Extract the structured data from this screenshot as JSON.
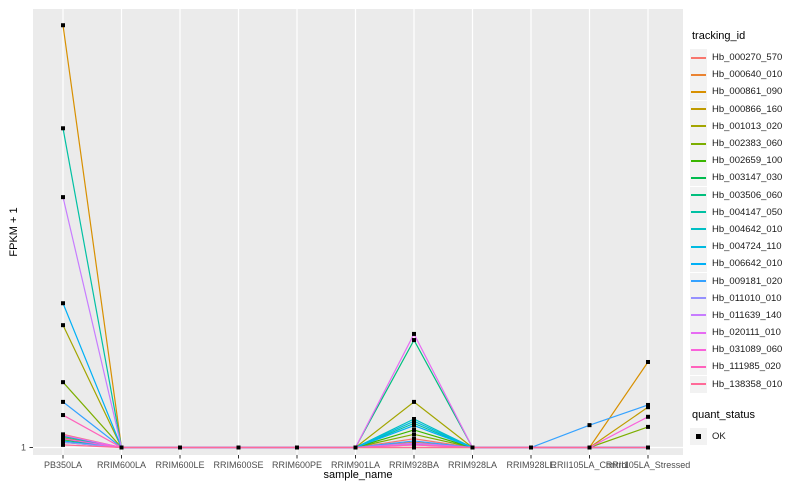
{
  "figure": {
    "background": "#FFFFFF",
    "panel_background": "#EBEBEB",
    "gridline_color": "#FFFFFF",
    "tick_color": "#333333",
    "tick_label_color": "#4D4D4D",
    "marker_color": "#000000"
  },
  "legend": {
    "color_legend_title": "tracking_id",
    "shape_legend_title": "quant_status",
    "shape_items": [
      {
        "label": "OK",
        "marker": "filled-square"
      }
    ]
  },
  "chart_data": {
    "type": "line",
    "title": "",
    "xlabel": "sample_name",
    "ylabel": "FPKM + 1",
    "x_type": "categorical",
    "y_ticks": [
      "1"
    ],
    "y_scale_note": "log-style axis; only the value 1 is labelled at the baseline. rel_heights are fractions of panel height above the FPKM+1 = 1 baseline (1.0 = panel top), measured from the image.",
    "grid": "white major vertical gridline per category, one horizontal gridline at y=1",
    "legend_position": "right",
    "point_marker": "small black square (quant_status OK)",
    "categories": [
      "PB350LA",
      "RRIM600LA",
      "RRIM600LE",
      "RRIM600SE",
      "RRIM600PE",
      "RRIM901LA",
      "RRIM928BA",
      "RRIM928LA",
      "RRIM928LE",
      "RRII105LA_Control",
      "RRII105LA_Stressed"
    ],
    "series": [
      {
        "name": "Hb_000270_570",
        "color": "#F8766D",
        "rel_heights": [
          0.03,
          0,
          0,
          0,
          0,
          0,
          0.02,
          0,
          0,
          0,
          0
        ]
      },
      {
        "name": "Hb_000640_010",
        "color": "#EA8331",
        "rel_heights": [
          0.026,
          0,
          0,
          0,
          0,
          0,
          0.012,
          0,
          0,
          0,
          0
        ]
      },
      {
        "name": "Hb_000861_090",
        "color": "#D89000",
        "rel_heights": [
          0.963,
          0,
          0,
          0,
          0,
          0,
          0.01,
          0,
          0,
          0,
          0.195
        ]
      },
      {
        "name": "Hb_000866_160",
        "color": "#C09B00",
        "rel_heights": [
          0.022,
          0,
          0,
          0,
          0,
          0,
          0,
          0,
          0,
          0,
          0.092
        ]
      },
      {
        "name": "Hb_001013_020",
        "color": "#A3A500",
        "rel_heights": [
          0.279,
          0,
          0,
          0,
          0,
          0,
          0.104,
          0,
          0,
          0,
          0
        ]
      },
      {
        "name": "Hb_002383_060",
        "color": "#7CAE00",
        "rel_heights": [
          0.149,
          0,
          0,
          0,
          0,
          0,
          0.03,
          0,
          0,
          0,
          0.047
        ]
      },
      {
        "name": "Hb_002659_100",
        "color": "#39B600",
        "rel_heights": [
          0.018,
          0,
          0,
          0,
          0,
          0,
          0.04,
          0,
          0,
          0,
          0
        ]
      },
      {
        "name": "Hb_003147_030",
        "color": "#00BB4E",
        "rel_heights": [
          0.012,
          0,
          0,
          0,
          0,
          0,
          0.008,
          0,
          0,
          0,
          0
        ]
      },
      {
        "name": "Hb_003506_060",
        "color": "#00BF7D",
        "rel_heights": [
          0.02,
          0,
          0,
          0,
          0,
          0,
          0.245,
          0,
          0,
          0,
          0
        ]
      },
      {
        "name": "Hb_004147_050",
        "color": "#00C1A3",
        "rel_heights": [
          0.728,
          0,
          0,
          0,
          0,
          0,
          0.055,
          0,
          0,
          0,
          0
        ]
      },
      {
        "name": "Hb_004642_010",
        "color": "#00BFC4",
        "rel_heights": [
          0.025,
          0,
          0,
          0,
          0,
          0,
          0.065,
          0,
          0,
          0,
          0
        ]
      },
      {
        "name": "Hb_004724_110",
        "color": "#00BAE0",
        "rel_heights": [
          0.015,
          0,
          0,
          0,
          0,
          0,
          0.06,
          0,
          0,
          0,
          0
        ]
      },
      {
        "name": "Hb_006642_010",
        "color": "#00B0F6",
        "rel_heights": [
          0.329,
          0,
          0,
          0,
          0,
          0,
          0.05,
          0,
          0,
          0,
          0
        ]
      },
      {
        "name": "Hb_009181_020",
        "color": "#35A2FF",
        "rel_heights": [
          0.104,
          0,
          0,
          0,
          0,
          0,
          0.015,
          0,
          0,
          0.051,
          0.097
        ]
      },
      {
        "name": "Hb_011010_010",
        "color": "#9590FF",
        "rel_heights": [
          0.012,
          0,
          0,
          0,
          0,
          0,
          0.008,
          0,
          0,
          0,
          0
        ]
      },
      {
        "name": "Hb_011639_140",
        "color": "#C77CFF",
        "rel_heights": [
          0.571,
          0,
          0,
          0,
          0,
          0,
          0.01,
          0,
          0,
          0,
          0
        ]
      },
      {
        "name": "Hb_020111_010",
        "color": "#E76BF3",
        "rel_heights": [
          0.028,
          0,
          0,
          0,
          0,
          0,
          0.259,
          0,
          0,
          0,
          0
        ]
      },
      {
        "name": "Hb_031089_060",
        "color": "#FA62DB",
        "rel_heights": [
          0.02,
          0,
          0,
          0,
          0,
          0,
          0.006,
          0,
          0,
          0,
          0.07
        ]
      },
      {
        "name": "Hb_111985_020",
        "color": "#FF62BC",
        "rel_heights": [
          0.074,
          0,
          0,
          0,
          0,
          0,
          0.006,
          0,
          0,
          0,
          0
        ]
      },
      {
        "name": "Hb_138358_010",
        "color": "#FF6A98",
        "rel_heights": [
          0.006,
          0,
          0,
          0,
          0,
          0,
          0,
          0,
          0,
          0,
          0
        ]
      }
    ]
  }
}
